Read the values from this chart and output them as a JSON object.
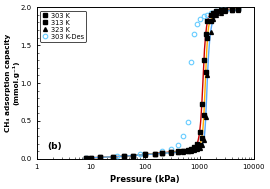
{
  "title": "",
  "xlabel": "Pressure (kPa)",
  "ylabel": "CH₄ adsorption capacity\n(mmol.g⁻¹)",
  "label_b": "(b)",
  "xlim": [
    1,
    10000
  ],
  "ylim": [
    0,
    2.0
  ],
  "yticks": [
    0.0,
    0.5,
    1.0,
    1.5,
    2.0
  ],
  "legend_labels": [
    "303 K",
    "313 K",
    "323 K",
    "303 K-Des"
  ],
  "series_303K_x": [
    8,
    10,
    15,
    25,
    40,
    60,
    100,
    150,
    200,
    300,
    400,
    500,
    600,
    700,
    800,
    900,
    1000,
    1100,
    1200,
    1300,
    1400,
    1600,
    1800,
    2000,
    2500,
    3000,
    4000,
    5000
  ],
  "series_303K_y": [
    0.01,
    0.012,
    0.018,
    0.025,
    0.033,
    0.042,
    0.058,
    0.068,
    0.076,
    0.088,
    0.096,
    0.105,
    0.115,
    0.13,
    0.15,
    0.2,
    0.35,
    0.72,
    1.3,
    1.65,
    1.82,
    1.9,
    1.93,
    1.95,
    1.96,
    1.97,
    1.975,
    1.98
  ],
  "series_313K_x": [
    8,
    10,
    15,
    25,
    40,
    60,
    100,
    150,
    200,
    300,
    400,
    500,
    600,
    700,
    800,
    900,
    1000,
    1100,
    1200,
    1300,
    1400,
    1600,
    1800,
    2000,
    2500,
    3000,
    4000,
    5000
  ],
  "series_313K_y": [
    0.01,
    0.012,
    0.018,
    0.025,
    0.033,
    0.042,
    0.058,
    0.066,
    0.074,
    0.085,
    0.093,
    0.1,
    0.108,
    0.118,
    0.13,
    0.15,
    0.185,
    0.28,
    0.58,
    1.15,
    1.6,
    1.82,
    1.9,
    1.93,
    1.95,
    1.96,
    1.97,
    1.98
  ],
  "series_323K_x": [
    8,
    10,
    15,
    25,
    40,
    60,
    100,
    150,
    200,
    300,
    400,
    500,
    600,
    700,
    800,
    900,
    1000,
    1100,
    1200,
    1300,
    1400,
    1600,
    1800,
    2000,
    2500,
    3000,
    4000,
    5000
  ],
  "series_323K_y": [
    0.01,
    0.012,
    0.018,
    0.025,
    0.033,
    0.042,
    0.055,
    0.063,
    0.071,
    0.08,
    0.088,
    0.094,
    0.1,
    0.108,
    0.117,
    0.128,
    0.145,
    0.175,
    0.25,
    0.55,
    1.1,
    1.68,
    1.84,
    1.9,
    1.93,
    1.95,
    1.96,
    1.97
  ],
  "series_des_x": [
    8,
    30,
    80,
    200,
    300,
    400,
    500,
    600,
    700,
    800,
    900,
    1000,
    1200,
    1400,
    1600,
    1800,
    2000,
    2500,
    3000,
    4000,
    5000
  ],
  "series_des_y": [
    0.01,
    0.03,
    0.06,
    0.1,
    0.13,
    0.18,
    0.3,
    0.48,
    1.28,
    1.65,
    1.78,
    1.84,
    1.88,
    1.9,
    1.92,
    1.93,
    1.95,
    1.96,
    1.97,
    1.975,
    1.98
  ],
  "color_303K": "#cc0000",
  "color_313K": "#ffaa00",
  "color_323K": "#55aaff",
  "color_des": "#66ccff",
  "marker_303K": "s",
  "marker_313K": "s",
  "marker_323K": "^",
  "marker_des": "o",
  "markersize": 2.8,
  "linewidth": 1.0,
  "background_color": "#ffffff"
}
